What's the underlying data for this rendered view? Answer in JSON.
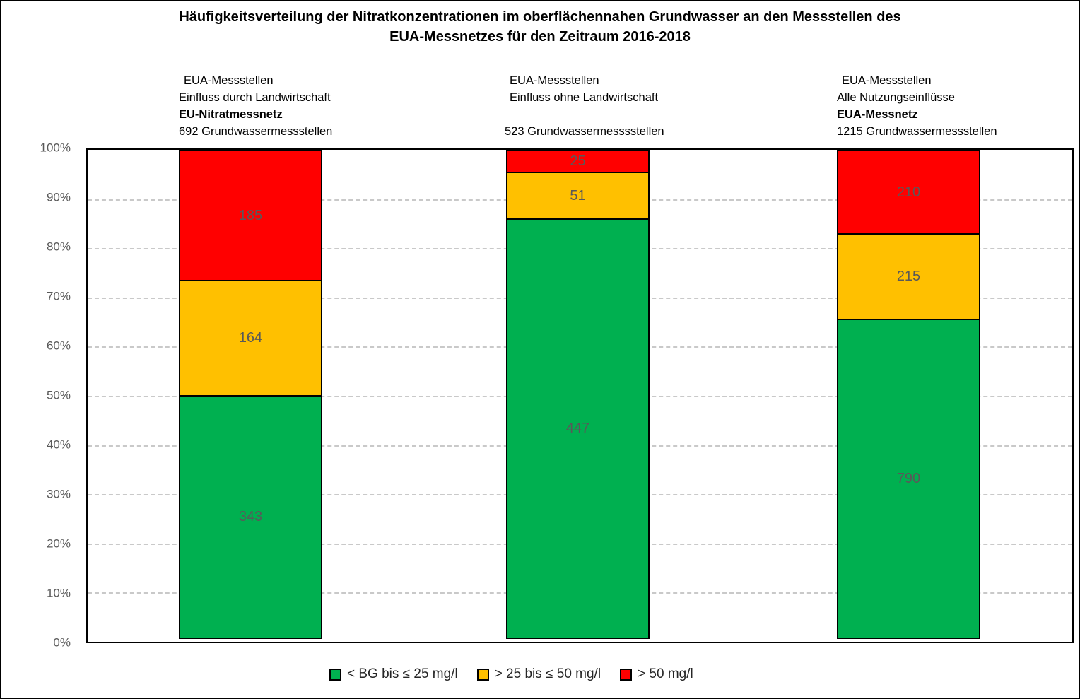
{
  "title": {
    "line1": "Häufigkeitsverteilung der Nitratkonzentrationen im oberflächennahen Grundwasser an den Messstellen des",
    "line2": "EUA-Messnetzes für den Zeitraum 2016-2018"
  },
  "colors": {
    "green": "#00B050",
    "yellow": "#FFC000",
    "red": "#FF0000",
    "value_label": "#595959",
    "axis_label": "#595959",
    "gridline": "#C9C9C9"
  },
  "chart_data": {
    "type": "bar",
    "stacked": true,
    "normalized_to_percent": true,
    "ylim": [
      0,
      100
    ],
    "grid": "horizontal dashed lines every 10%",
    "legend_position": "bottom center",
    "yticks": [
      "100%",
      "90%",
      "80%",
      "70%",
      "60%",
      "50%",
      "40%",
      "30%",
      "20%",
      "10%",
      "0%"
    ],
    "categories": [
      {
        "line1": "EUA-Messstellen",
        "line2": "Einfluss durch Landwirtschaft",
        "line3": "EU-Nitratmessnetz",
        "line4": "692 Grundwassermessstellen",
        "total": 692,
        "green": 343,
        "yellow": 164,
        "red": 185
      },
      {
        "line1": "EUA-Messstellen",
        "line2": "Einfluss ohne Landwirtschaft",
        "line3": "",
        "line4": "523 Grundwassermesssstellen",
        "total": 523,
        "green": 447,
        "yellow": 51,
        "red": 25
      },
      {
        "line1": "EUA-Messstellen",
        "line2": "Alle Nutzungseinflüsse",
        "line3": "EUA-Messnetz",
        "line4": "1215 Grundwassermessstellen",
        "total": 1215,
        "green": 790,
        "yellow": 215,
        "red": 210
      }
    ],
    "series": [
      {
        "name": "< BG bis ≤ 25 mg/l",
        "color_key": "green",
        "color": "#00B050",
        "values": [
          343,
          447,
          790
        ]
      },
      {
        "name": "> 25 bis ≤ 50 mg/l",
        "color_key": "yellow",
        "color": "#FFC000",
        "values": [
          164,
          51,
          215
        ]
      },
      {
        "name": "> 50 mg/l",
        "color_key": "red",
        "color": "#FF0000",
        "values": [
          185,
          25,
          210
        ]
      }
    ]
  }
}
